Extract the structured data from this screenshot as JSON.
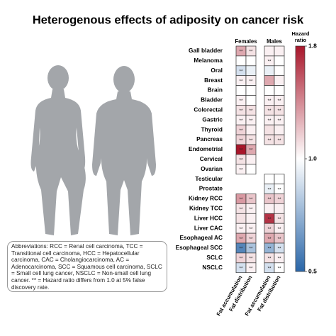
{
  "chart_data": {
    "type": "heatmap",
    "title": "Heterogenous effects of adiposity on cancer risk",
    "groups": [
      "Females",
      "Males"
    ],
    "columns": [
      "Fat accumulation",
      "Fat distribution"
    ],
    "rows": [
      "Gall bladder",
      "Melanoma",
      "Oral",
      "Breast",
      "Brain",
      "Bladder",
      "Colorectal",
      "Gastric",
      "Thyroid",
      "Pancreas",
      "Endometrial",
      "Cervical",
      "Ovarian",
      "Testicular",
      "Prostate",
      "Kidney RCC",
      "Kidney TCC",
      "Liver HCC",
      "Liver CAC",
      "Esophageal AC",
      "Esophageal SCC",
      "SCLC",
      "NSCLC"
    ],
    "values": [
      [
        1.3,
        1.1,
        1.05,
        1.05
      ],
      [
        1.0,
        1.0,
        1.05,
        1.0
      ],
      [
        0.9,
        0.95,
        0.95,
        1.0
      ],
      [
        1.05,
        1.05,
        1.3,
        1.05
      ],
      [
        1.0,
        1.0,
        1.0,
        1.0
      ],
      [
        1.05,
        1.0,
        1.05,
        1.05
      ],
      [
        1.1,
        1.1,
        1.1,
        1.1
      ],
      [
        1.05,
        1.05,
        1.05,
        1.05
      ],
      [
        1.15,
        1.05,
        1.1,
        1.05
      ],
      [
        1.15,
        1.1,
        1.1,
        1.1
      ],
      [
        1.8,
        1.3,
        null,
        null
      ],
      [
        1.1,
        1.05,
        null,
        null
      ],
      [
        1.05,
        1.0,
        null,
        null
      ],
      [
        null,
        null,
        1.0,
        1.0
      ],
      [
        null,
        null,
        0.95,
        1.0
      ],
      [
        1.35,
        1.2,
        1.2,
        1.15
      ],
      [
        1.1,
        1.05,
        1.05,
        1.05
      ],
      [
        1.1,
        1.05,
        1.7,
        1.1
      ],
      [
        1.05,
        1.05,
        1.15,
        1.05
      ],
      [
        1.3,
        1.15,
        1.3,
        1.2
      ],
      [
        0.6,
        0.8,
        0.75,
        0.9
      ],
      [
        1.15,
        1.1,
        1.1,
        1.05
      ],
      [
        0.9,
        1.05,
        0.9,
        1.0
      ]
    ],
    "significance": [
      [
        "**",
        "**",
        null,
        null
      ],
      [
        null,
        null,
        "**",
        null
      ],
      [
        "**",
        null,
        null,
        null
      ],
      [
        "**",
        "**",
        null,
        null
      ],
      [
        null,
        null,
        null,
        null
      ],
      [
        "**",
        null,
        "**",
        "**"
      ],
      [
        "**",
        "**",
        "**",
        "**"
      ],
      [
        "**",
        "**",
        "**",
        "**"
      ],
      [
        "**",
        null,
        null,
        null
      ],
      [
        "**",
        "**",
        "**",
        "**"
      ],
      [
        "**",
        "**",
        null,
        null
      ],
      [
        "**",
        null,
        null,
        null
      ],
      [
        "**",
        null,
        null,
        null
      ],
      [
        null,
        null,
        null,
        null
      ],
      [
        null,
        null,
        "**",
        "**"
      ],
      [
        "**",
        "**",
        "**",
        "**"
      ],
      [
        "**",
        "**",
        null,
        null
      ],
      [
        null,
        null,
        "**",
        "**"
      ],
      [
        "**",
        "**",
        "**",
        "**"
      ],
      [
        "**",
        "**",
        "**",
        "**"
      ],
      [
        "**",
        "**",
        "**",
        "**"
      ],
      [
        "**",
        "**",
        "**",
        "**"
      ],
      [
        "**",
        "**",
        "**",
        "**"
      ]
    ],
    "colorbar": {
      "title": "Hazard ratio",
      "lim": [
        0.5,
        1.8
      ],
      "center": {
        "value": 1,
        "label": "1.0"
      },
      "ticks": [
        0.5,
        {
          "value": 1,
          "label": "1.0"
        },
        1.8
      ],
      "colors": [
        "#2a66a8",
        "#ffffff",
        "#a8162a"
      ]
    },
    "note": "Abbreviations: RCC = Renal cell carcinoma, TCC = Transitional cell carcinoma, HCC = Hepatocellular carcinoma, CAC = Cholangiocarcinoma, AC = Adenocarcinoma, SCC = Squamous cell carcinoma, SCLC = Small cell lung cancer, NSCLC = Non-small cell lung cancer. ** = Hazard ratio differs from 1.0 at 5% false discovery rate."
  }
}
